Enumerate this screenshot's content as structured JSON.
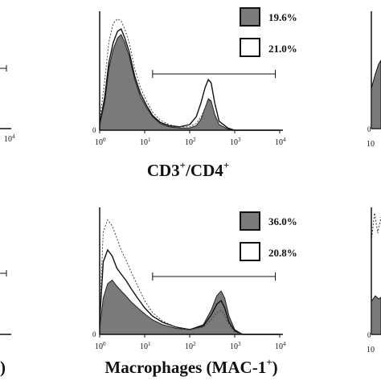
{
  "chart_data": [
    {
      "type": "area",
      "title": "CD3",
      "title_sup1": "+",
      "title_mid": "/CD4",
      "title_sup2": "+",
      "x_scale": "log",
      "xlim": [
        1,
        10000
      ],
      "y_zero_label": "0",
      "x_ticks": [
        {
          "base": "10",
          "exp": "0"
        },
        {
          "base": "10",
          "exp": "1"
        },
        {
          "base": "10",
          "exp": "2"
        },
        {
          "base": "10",
          "exp": "3"
        },
        {
          "base": "10",
          "exp": "4"
        }
      ],
      "gate": {
        "x_from": 15,
        "x_to": 8000
      },
      "legend": [
        {
          "label": "19.6%",
          "fill": "#7a7a7a"
        },
        {
          "label": "21.0%",
          "fill": "#ffffff"
        }
      ],
      "series": [
        {
          "style": "filled",
          "x": [
            1,
            1.3,
            1.6,
            2,
            2.5,
            3,
            3.6,
            4.5,
            6,
            8,
            11,
            15,
            22,
            35,
            60,
            100,
            140,
            180,
            220,
            260,
            300,
            360,
            450,
            700,
            1000,
            2000,
            10000
          ],
          "y": [
            0.05,
            0.25,
            0.55,
            0.72,
            0.82,
            0.85,
            0.78,
            0.66,
            0.45,
            0.3,
            0.2,
            0.12,
            0.06,
            0.03,
            0.02,
            0.02,
            0.04,
            0.1,
            0.2,
            0.28,
            0.26,
            0.14,
            0.05,
            0.01,
            0,
            0,
            0
          ]
        },
        {
          "style": "solid",
          "x": [
            1,
            1.3,
            1.6,
            2,
            2.5,
            3,
            3.6,
            4.5,
            6,
            8,
            11,
            15,
            22,
            35,
            60,
            100,
            140,
            180,
            220,
            260,
            300,
            360,
            450,
            700,
            1000,
            2000,
            10000
          ],
          "y": [
            0.05,
            0.3,
            0.6,
            0.78,
            0.88,
            0.9,
            0.82,
            0.7,
            0.48,
            0.33,
            0.22,
            0.13,
            0.07,
            0.04,
            0.03,
            0.05,
            0.12,
            0.25,
            0.38,
            0.45,
            0.42,
            0.24,
            0.08,
            0.02,
            0,
            0,
            0
          ]
        },
        {
          "style": "dotted",
          "x": [
            1,
            1.3,
            1.6,
            2,
            2.5,
            3,
            3.6,
            4.5,
            6,
            8,
            11,
            15,
            22,
            35,
            60,
            100,
            140,
            180,
            220,
            260,
            300,
            360,
            450,
            700,
            1000,
            2000,
            10000
          ],
          "y": [
            0.08,
            0.45,
            0.78,
            0.95,
            0.99,
            0.97,
            0.9,
            0.78,
            0.55,
            0.38,
            0.26,
            0.16,
            0.09,
            0.05,
            0.03,
            0.03,
            0.06,
            0.12,
            0.2,
            0.27,
            0.25,
            0.13,
            0.05,
            0.01,
            0,
            0,
            0
          ]
        }
      ]
    },
    {
      "type": "area",
      "title": "Macrophages (MAC-1",
      "title_sup1": "+",
      "title_mid": ")",
      "title_sup2": "",
      "x_scale": "log",
      "xlim": [
        1,
        10000
      ],
      "y_zero_label": "0",
      "x_ticks": [
        {
          "base": "10",
          "exp": "0"
        },
        {
          "base": "10",
          "exp": "1"
        },
        {
          "base": "10",
          "exp": "2"
        },
        {
          "base": "10",
          "exp": "3"
        },
        {
          "base": "10",
          "exp": "4"
        }
      ],
      "gate": {
        "x_from": 15,
        "x_to": 8000
      },
      "legend": [
        {
          "label": "36.0%",
          "fill": "#7a7a7a"
        },
        {
          "label": "20.8%",
          "fill": "#ffffff"
        }
      ],
      "series": [
        {
          "style": "filled",
          "x": [
            1,
            1.2,
            1.5,
            1.9,
            2.4,
            3,
            3.8,
            5,
            7,
            10,
            15,
            25,
            50,
            100,
            200,
            300,
            400,
            500,
            600,
            750,
            1000,
            1500,
            10000
          ],
          "y": [
            0.05,
            0.3,
            0.42,
            0.45,
            0.4,
            0.36,
            0.32,
            0.27,
            0.22,
            0.17,
            0.12,
            0.08,
            0.05,
            0.04,
            0.08,
            0.2,
            0.32,
            0.36,
            0.3,
            0.15,
            0.04,
            0,
            0
          ]
        },
        {
          "style": "solid",
          "x": [
            1,
            1.2,
            1.5,
            1.9,
            2.4,
            3,
            3.8,
            5,
            7,
            10,
            15,
            25,
            50,
            100,
            200,
            300,
            400,
            500,
            600,
            750,
            1000,
            1500,
            10000
          ],
          "y": [
            0.1,
            0.6,
            0.7,
            0.65,
            0.55,
            0.5,
            0.45,
            0.38,
            0.3,
            0.22,
            0.15,
            0.1,
            0.06,
            0.04,
            0.07,
            0.16,
            0.25,
            0.28,
            0.22,
            0.1,
            0.03,
            0,
            0
          ]
        },
        {
          "style": "dotted",
          "x": [
            1,
            1.2,
            1.5,
            1.9,
            2.4,
            3,
            3.8,
            5,
            7,
            10,
            15,
            25,
            50,
            100,
            200,
            300,
            400,
            500,
            600,
            750,
            1000,
            1500,
            10000
          ],
          "y": [
            0.15,
            0.85,
            0.95,
            0.9,
            0.8,
            0.7,
            0.62,
            0.52,
            0.4,
            0.28,
            0.18,
            0.11,
            0.06,
            0.04,
            0.06,
            0.12,
            0.18,
            0.2,
            0.16,
            0.08,
            0.02,
            0,
            0
          ]
        }
      ]
    }
  ],
  "side_fragments": {
    "left_top_tick": "10",
    "left_top_tick_exp": "4",
    "left_bottom_label": ")",
    "right_top_tick": "10",
    "right_bottom_tick": "10"
  }
}
